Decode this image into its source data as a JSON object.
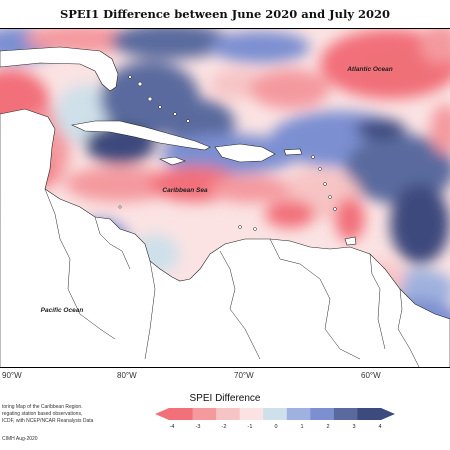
{
  "title": "SPEI1 Difference between June 2020 and July 2020",
  "ocean_labels": {
    "atlantic": "Atlantic Ocean",
    "caribbean": "Caribbean Sea",
    "pacific": "Pacific Ocean"
  },
  "longitude_labels": [
    "90°W",
    "80°W",
    "70°W",
    "60°W"
  ],
  "legend": {
    "title": "SPEI Difference",
    "ticks": [
      "-4",
      "-3",
      "-2",
      "-1",
      "0",
      "1",
      "2",
      "3",
      "4"
    ],
    "colors": [
      "#f2707a",
      "#f49a9f",
      "#f7c4c5",
      "#fbe3e3",
      "#cfe0ea",
      "#9fb1de",
      "#7b8fd1",
      "#5a6a9e",
      "#3d4a7d"
    ]
  },
  "notes": {
    "line1": "toring Map of the Caribbean Region.",
    "line2": "regating station based observations,",
    "line3": "ICDF, with NCEP/NCAR Reanalysis Data",
    "credit": "CIMH Aug-2020"
  }
}
